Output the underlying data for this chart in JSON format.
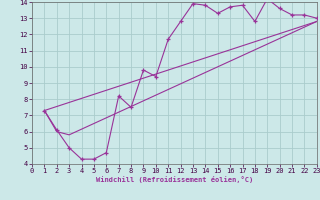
{
  "xlabel": "Windchill (Refroidissement éolien,°C)",
  "bg_color": "#cce8e8",
  "grid_color": "#aacccc",
  "line_color": "#993399",
  "xlim": [
    0,
    23
  ],
  "ylim": [
    4,
    14
  ],
  "xticks": [
    0,
    1,
    2,
    3,
    4,
    5,
    6,
    7,
    8,
    9,
    10,
    11,
    12,
    13,
    14,
    15,
    16,
    17,
    18,
    19,
    20,
    21,
    22,
    23
  ],
  "yticks": [
    4,
    5,
    6,
    7,
    8,
    9,
    10,
    11,
    12,
    13,
    14
  ],
  "series1_x": [
    1,
    2,
    3,
    4,
    5,
    6,
    7,
    8,
    9,
    10,
    11,
    12,
    13,
    14,
    15,
    16,
    17,
    18,
    19,
    20,
    21,
    22,
    23
  ],
  "series1_y": [
    7.3,
    6.1,
    5.0,
    4.3,
    4.3,
    4.7,
    8.2,
    7.5,
    9.8,
    9.4,
    11.7,
    12.8,
    13.9,
    13.8,
    13.3,
    13.7,
    13.8,
    12.8,
    14.2,
    13.6,
    13.2,
    13.2,
    13.0
  ],
  "series2_x": [
    1,
    2,
    3,
    23
  ],
  "series2_y": [
    7.3,
    6.0,
    5.8,
    12.8
  ],
  "series3_x": [
    1,
    23
  ],
  "series3_y": [
    7.3,
    12.8
  ]
}
